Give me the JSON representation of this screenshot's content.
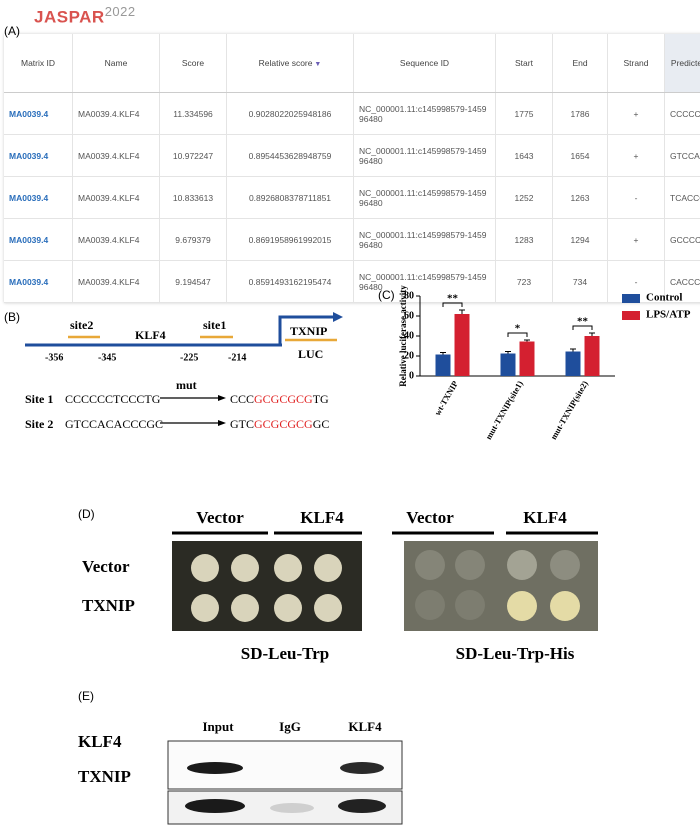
{
  "header": {
    "logo": "JASPAR",
    "version": "2022"
  },
  "panel_a": {
    "label": "(A)",
    "table": {
      "columns": [
        "Matrix ID",
        "Name",
        "Score",
        "Relative score",
        "Sequence ID",
        "Start",
        "End",
        "Strand",
        "Predicted sequence"
      ],
      "rows": [
        [
          "MA0039.4",
          "MA0039.4.KLF4",
          "11.334596",
          "0.9028022025948186",
          "NC_000001.11:c145998579-145996480",
          "1775",
          "1786",
          "+",
          "CCCCCCTCCCTG"
        ],
        [
          "MA0039.4",
          "MA0039.4.KLF4",
          "10.972247",
          "0.8954453628948759",
          "NC_000001.11:c145998579-145996480",
          "1643",
          "1654",
          "+",
          "GTCCACACCCGC"
        ],
        [
          "MA0039.4",
          "MA0039.4.KLF4",
          "10.833613",
          "0.8926808378711851",
          "NC_000001.11:c145998579-145996480",
          "1252",
          "1263",
          "-",
          "TCACCCACCCCC"
        ],
        [
          "MA0039.4",
          "MA0039.4.KLF4",
          "9.679379",
          "0.8691958961992015",
          "NC_000001.11:c145998579-145996480",
          "1283",
          "1294",
          "+",
          "GCCCCCAGCCCT"
        ],
        [
          "MA0039.4",
          "MA0039.4.KLF4",
          "9.194547",
          "0.8591493162195474",
          "NC_000001.11:c145998579-145996480",
          "723",
          "734",
          "-",
          "CACCCTACCCTC"
        ]
      ]
    }
  },
  "panel_b": {
    "label": "(B)",
    "factor": "KLF4",
    "gene": "TXNIP",
    "reporter": "LUC",
    "site_labels": [
      "site2",
      "site1"
    ],
    "positions": [
      "-356",
      "-345",
      "-225",
      "-214"
    ],
    "mutation": "mut",
    "sites": [
      {
        "name": "Site 1",
        "wild": "CCCCCCTCCCTG",
        "mutant": [
          "CCC",
          "GCGCGCG",
          "TG"
        ]
      },
      {
        "name": "Site 2",
        "wild": "GTCCACACCCGC",
        "mutant": [
          "GTC",
          "GCGCGCG",
          "GC"
        ]
      }
    ]
  },
  "chart_data": {
    "type": "bar",
    "panel_label": "(C)",
    "ylabel": "Relative luciferase activity",
    "categories": [
      "wt-TXNIP",
      "mut-TXNIP(site1)",
      "mut-TXNIP(site2)"
    ],
    "series": [
      {
        "name": "Control",
        "color": "#1f4e9c",
        "values": [
          21.5,
          22.5,
          24.5
        ],
        "errors": [
          2,
          2,
          2.5
        ]
      },
      {
        "name": "LPS/ATP",
        "color": "#d42030",
        "values": [
          62,
          34.5,
          40
        ],
        "errors": [
          4,
          1.5,
          3
        ]
      }
    ],
    "significance": [
      "**",
      "*",
      "**"
    ],
    "ylim": [
      0,
      80
    ],
    "yticks": [
      0,
      20,
      40,
      60,
      80
    ],
    "legend": "top-right"
  },
  "panel_d": {
    "label": "(D)",
    "columns": [
      "Vector",
      "KLF4"
    ],
    "rows": [
      "Vector",
      "TXNIP"
    ],
    "media": [
      "SD-Leu-Trp",
      "SD-Leu-Trp-His"
    ]
  },
  "panel_e": {
    "label": "(E)",
    "lanes": [
      "Input",
      "IgG",
      "KLF4"
    ],
    "blots": [
      "KLF4",
      "TXNIP"
    ]
  }
}
